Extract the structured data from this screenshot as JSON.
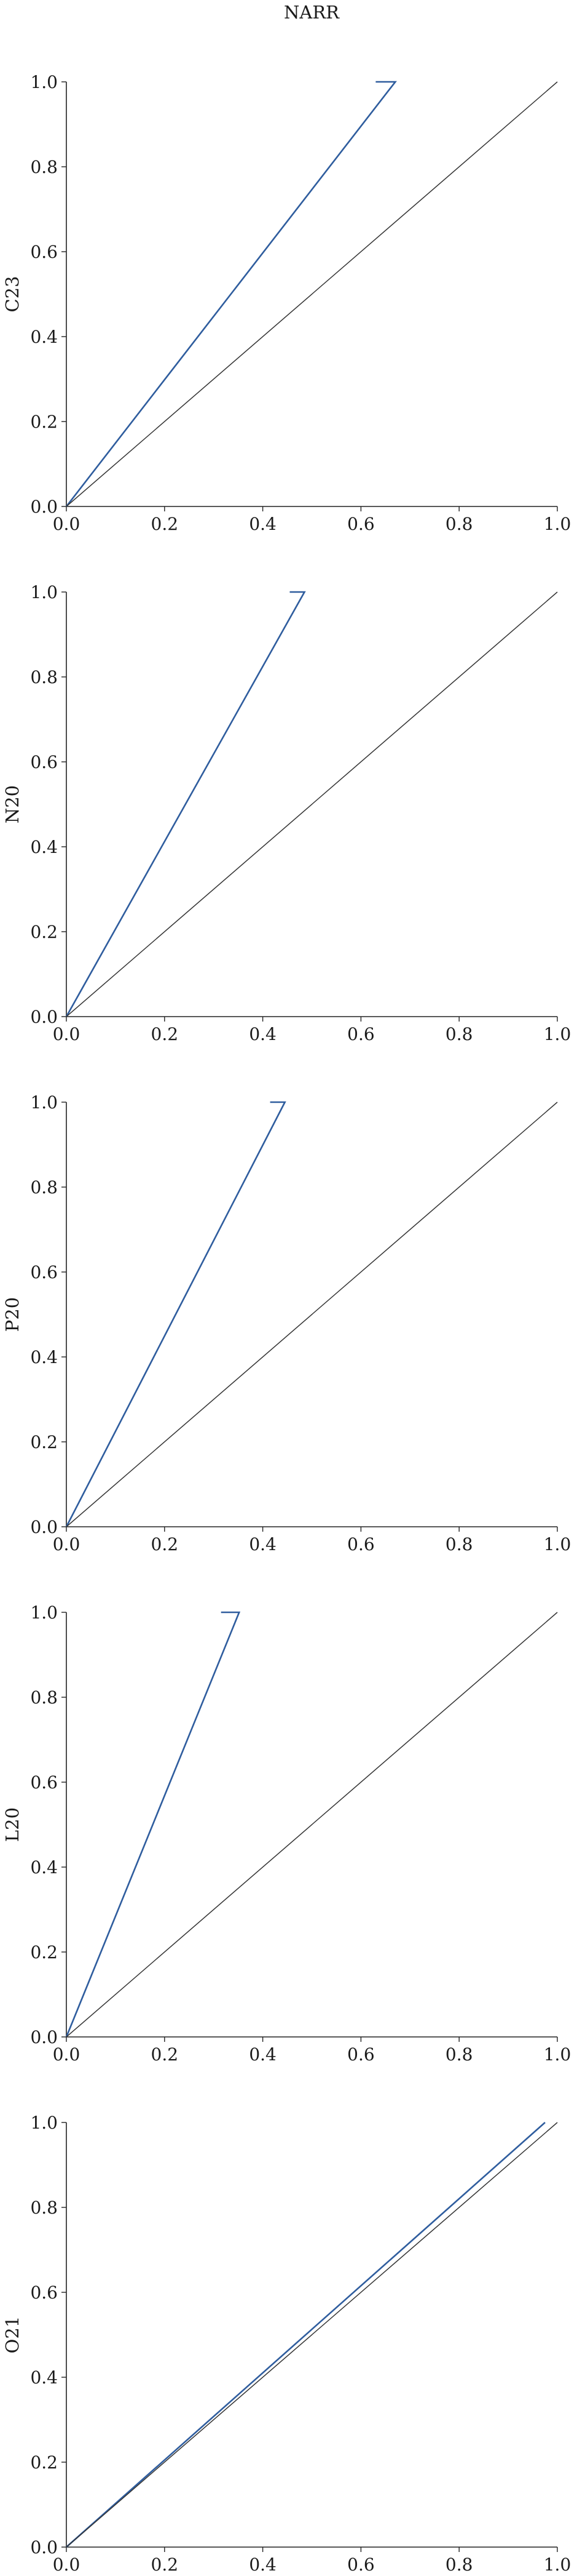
{
  "title": "NARR",
  "colors": {
    "series": "#2f5d9e",
    "diagonal": "#333333",
    "axis": "#222222"
  },
  "chart_data": [
    {
      "type": "line",
      "title": "",
      "xlabel": "",
      "ylabel": "C23",
      "xlim": [
        0,
        1
      ],
      "ylim": [
        0,
        1
      ],
      "xticks": [
        "0.0",
        "0.2",
        "0.4",
        "0.6",
        "0.8",
        "1.0"
      ],
      "yticks": [
        "0.0",
        "0.2",
        "0.4",
        "0.6",
        "0.8",
        "1.0"
      ],
      "grid": false,
      "series": [
        {
          "x": [
            0.0,
            0.67,
            0.63
          ],
          "y": [
            0.0,
            1.0,
            1.0
          ]
        },
        {
          "x": [
            0,
            1
          ],
          "y": [
            0,
            1
          ]
        }
      ]
    },
    {
      "type": "line",
      "title": "",
      "xlabel": "",
      "ylabel": "N20",
      "xlim": [
        0,
        1
      ],
      "ylim": [
        0,
        1
      ],
      "xticks": [
        "0.0",
        "0.2",
        "0.4",
        "0.6",
        "0.8",
        "1.0"
      ],
      "yticks": [
        "0.0",
        "0.2",
        "0.4",
        "0.6",
        "0.8",
        "1.0"
      ],
      "grid": false,
      "series": [
        {
          "x": [
            0.0,
            0.485,
            0.455
          ],
          "y": [
            0.0,
            1.0,
            1.0
          ]
        },
        {
          "x": [
            0,
            1
          ],
          "y": [
            0,
            1
          ]
        }
      ]
    },
    {
      "type": "line",
      "title": "",
      "xlabel": "",
      "ylabel": "P20",
      "xlim": [
        0,
        1
      ],
      "ylim": [
        0,
        1
      ],
      "xticks": [
        "0.0",
        "0.2",
        "0.4",
        "0.6",
        "0.8",
        "1.0"
      ],
      "yticks": [
        "0.0",
        "0.2",
        "0.4",
        "0.6",
        "0.8",
        "1.0"
      ],
      "grid": false,
      "series": [
        {
          "x": [
            0.0,
            0.445,
            0.415
          ],
          "y": [
            0.0,
            1.0,
            1.0
          ]
        },
        {
          "x": [
            0,
            1
          ],
          "y": [
            0,
            1
          ]
        }
      ]
    },
    {
      "type": "line",
      "title": "",
      "xlabel": "",
      "ylabel": "L20",
      "xlim": [
        0,
        1
      ],
      "ylim": [
        0,
        1
      ],
      "xticks": [
        "0.0",
        "0.2",
        "0.4",
        "0.6",
        "0.8",
        "1.0"
      ],
      "yticks": [
        "0.0",
        "0.2",
        "0.4",
        "0.6",
        "0.8",
        "1.0"
      ],
      "grid": false,
      "series": [
        {
          "x": [
            0.0,
            0.352,
            0.315
          ],
          "y": [
            0.0,
            1.0,
            1.0
          ]
        },
        {
          "x": [
            0,
            1
          ],
          "y": [
            0,
            1
          ]
        }
      ]
    },
    {
      "type": "line",
      "title": "",
      "xlabel": "",
      "ylabel": "O21",
      "xlim": [
        0,
        1
      ],
      "ylim": [
        0,
        1
      ],
      "xticks": [
        "0.0",
        "0.2",
        "0.4",
        "0.6",
        "0.8",
        "1.0"
      ],
      "yticks": [
        "0.0",
        "0.2",
        "0.4",
        "0.6",
        "0.8",
        "1.0"
      ],
      "grid": false,
      "series": [
        {
          "x": [
            0.0,
            0.975
          ],
          "y": [
            0.0,
            1.0
          ]
        },
        {
          "x": [
            0,
            1
          ],
          "y": [
            0,
            1
          ]
        }
      ]
    }
  ]
}
